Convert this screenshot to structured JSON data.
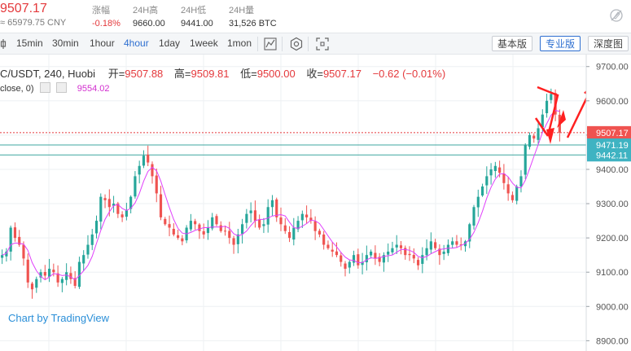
{
  "ticker": {
    "price": "9507.17",
    "cny": "≈ 65979.75 CNY",
    "stats": [
      {
        "label": "涨幅",
        "value": "-0.18%",
        "red": true
      },
      {
        "label": "24H高",
        "value": "9660.00",
        "red": false
      },
      {
        "label": "24H低",
        "value": "9441.00",
        "red": false
      },
      {
        "label": "24H量",
        "value": "31,526 BTC",
        "red": false
      }
    ]
  },
  "toolbar": {
    "timeframes": [
      "15min",
      "30min",
      "1hour",
      "4hour",
      "1day",
      "1week",
      "1mon"
    ],
    "active_timeframe": "4hour",
    "modes": [
      "基本版",
      "专业版",
      "深度图"
    ],
    "active_mode": "专业版"
  },
  "legend": {
    "symbol": "C/USDT, 240, Huobi",
    "open_label": "开=",
    "open": "9507.88",
    "high_label": "高=",
    "high": "9509.81",
    "low_label": "低=",
    "low": "9500.00",
    "close_label": "收=",
    "close": "9507.17",
    "change": "−0.62 (−0.01%)",
    "ma_params": "close, 0)",
    "ma_value": "9554.02"
  },
  "watermark": "Chart by TradingView",
  "colors": {
    "up": "#26a69a",
    "down": "#ef5350",
    "ma": "#e040fb",
    "accent": "#2e6fd0",
    "arrow": "#ff2020"
  },
  "chart_data": {
    "type": "candlestick",
    "series_name": "",
    "y_axis_ticks": [
      8900,
      9000,
      9100,
      9200,
      9300,
      9400,
      9500,
      9600,
      9700
    ],
    "ylim": [
      8870,
      9735
    ],
    "price_labels": [
      {
        "value": 9507.17,
        "label": "9507.17",
        "kind": "last"
      },
      {
        "value": 9471.19,
        "label": "9471.19",
        "kind": "level"
      },
      {
        "value": 9442.11,
        "label": "9442.11",
        "kind": "level"
      }
    ],
    "horizontal_lines": [
      9507.17,
      9471.19,
      9442.11
    ],
    "closes": [
      9150,
      9160,
      9230,
      9200,
      9180,
      9140,
      9070,
      9050,
      9080,
      9100,
      9090,
      9110,
      9100,
      9070,
      9080,
      9100,
      9080,
      9060,
      9130,
      9150,
      9180,
      9210,
      9250,
      9320,
      9310,
      9290,
      9300,
      9270,
      9260,
      9280,
      9320,
      9380,
      9410,
      9440,
      9420,
      9380,
      9330,
      9260,
      9240,
      9230,
      9210,
      9200,
      9190,
      9230,
      9250,
      9240,
      9220,
      9210,
      9230,
      9260,
      9240,
      9220,
      9220,
      9200,
      9180,
      9210,
      9240,
      9270,
      9280,
      9250,
      9230,
      9240,
      9290,
      9310,
      9260,
      9240,
      9220,
      9200,
      9230,
      9250,
      9270,
      9260,
      9250,
      9220,
      9210,
      9180,
      9170,
      9160,
      9150,
      9130,
      9110,
      9130,
      9150,
      9120,
      9130,
      9150,
      9160,
      9140,
      9130,
      9150,
      9160,
      9170,
      9180,
      9170,
      9150,
      9150,
      9140,
      9120,
      9150,
      9170,
      9190,
      9170,
      9150,
      9160,
      9180,
      9190,
      9180,
      9180,
      9190,
      9240,
      9290,
      9320,
      9350,
      9380,
      9400,
      9410,
      9390,
      9360,
      9330,
      9310,
      9350,
      9380,
      9470,
      9500,
      9490,
      9520,
      9560,
      9600,
      9620,
      9560,
      9507
    ],
    "ma_note": "moving average of close",
    "annotations": "hand-drawn red arrows near last candles"
  }
}
